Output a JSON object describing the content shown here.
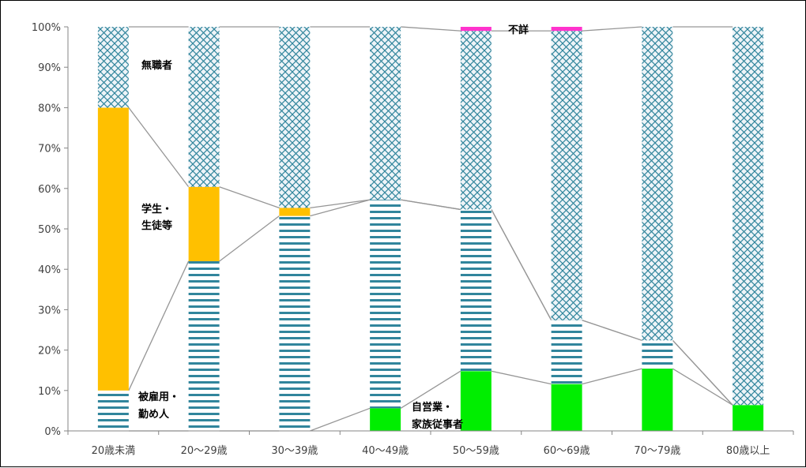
{
  "chart_data": {
    "type": "bar",
    "stacked": true,
    "percent": true,
    "categories": [
      "20歳未満",
      "20～29歳",
      "30～39歳",
      "40～49歳",
      "50～59歳",
      "60～69歳",
      "70～79歳",
      "80歳以上"
    ],
    "ylim": [
      0,
      100
    ],
    "yticks": [
      "0%",
      "10%",
      "20%",
      "30%",
      "40%",
      "50%",
      "60%",
      "70%",
      "80%",
      "90%",
      "100%"
    ],
    "series": [
      {
        "name": "自営業・家族従事者",
        "color": "#00ee00",
        "pattern": "solid",
        "values": [
          0,
          0,
          0,
          5.6,
          14.8,
          11.6,
          15.4,
          6.4
        ]
      },
      {
        "name": "被雇用・勤め人",
        "color": "#31859c",
        "pattern": "horizontal-stripes",
        "values": [
          10,
          42,
          53.2,
          51.6,
          40,
          15.8,
          7,
          0
        ]
      },
      {
        "name": "学生・生徒等",
        "color": "#ffc000",
        "pattern": "solid",
        "values": [
          70,
          18.4,
          2,
          0,
          0,
          0,
          0,
          0
        ]
      },
      {
        "name": "無職者",
        "color": "#31859c",
        "pattern": "crosshatch",
        "values": [
          20,
          39.6,
          44.8,
          42.8,
          44.2,
          71.6,
          77.6,
          93.6
        ]
      },
      {
        "name": "不詳",
        "color": "#ff33cc",
        "pattern": "solid",
        "values": [
          0,
          0,
          0,
          0,
          1,
          1,
          0,
          0
        ]
      }
    ],
    "annotations": {
      "unemployed": "無職者",
      "student_line1": "学生・",
      "student_line2": "生徒等",
      "employee_line1": "被雇用・",
      "employee_line2": "勤め人",
      "selfemployed_line1": "自営業・",
      "selfemployed_line2": "家族従事者",
      "unknown": "不詳"
    }
  }
}
